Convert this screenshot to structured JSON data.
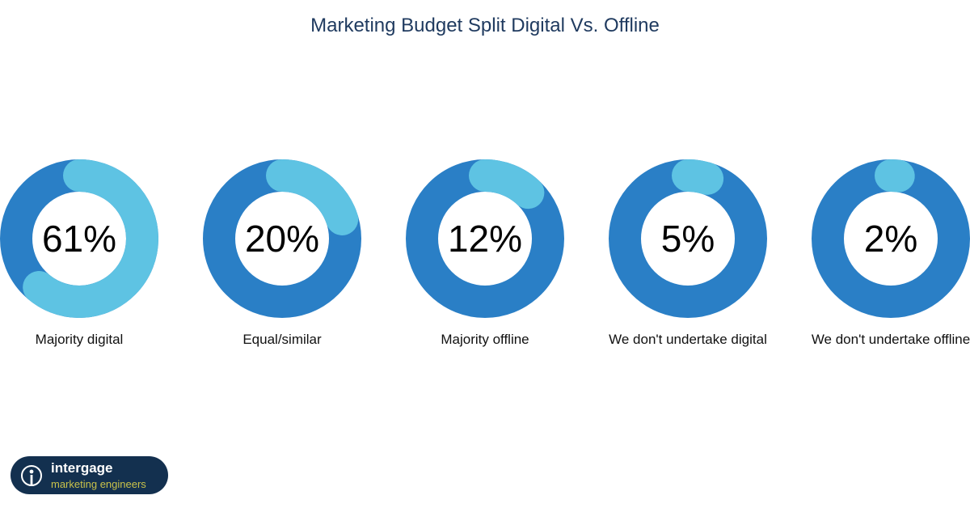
{
  "chart_data": {
    "type": "pie",
    "title": "Marketing Budget Split Digital Vs. Offline",
    "categories": [
      "Majority digital",
      "Equal/similar",
      "Majority offline",
      "We don't undertake digital",
      "We don't undertake offline"
    ],
    "values": [
      61,
      20,
      12,
      5,
      2
    ],
    "value_labels": [
      "61%",
      "20%",
      "12%",
      "5%",
      "2%"
    ],
    "unit": "%",
    "colors": {
      "track": "#2a7fc6",
      "highlight": "#5ec3e3"
    }
  },
  "logo": {
    "name": "intergage",
    "tagline": "marketing engineers"
  }
}
